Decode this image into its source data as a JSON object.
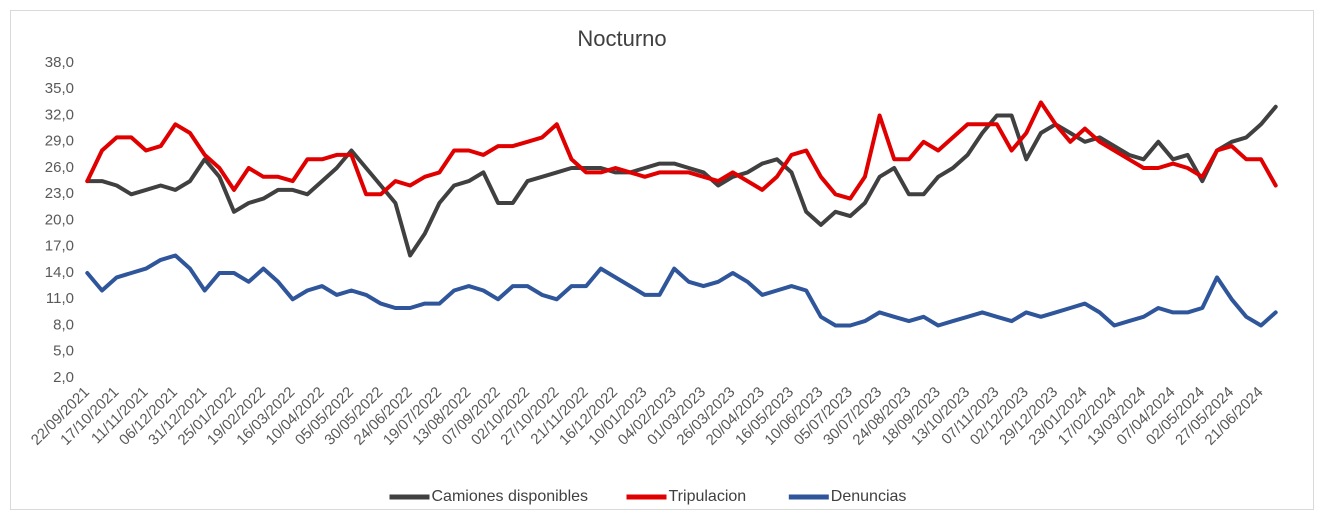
{
  "chart_data": {
    "type": "line",
    "title": "Nocturno",
    "categories": [
      "22/09/2021",
      null,
      "17/10/2021",
      null,
      "11/11/2021",
      null,
      "06/12/2021",
      null,
      "31/12/2021",
      null,
      "25/01/2022",
      null,
      "19/02/2022",
      null,
      "16/03/2022",
      null,
      "10/04/2022",
      null,
      "05/05/2022",
      null,
      "30/05/2022",
      null,
      "24/06/2022",
      null,
      "19/07/2022",
      null,
      "13/08/2022",
      null,
      "07/09/2022",
      null,
      "02/10/2022",
      null,
      "27/10/2022",
      null,
      "21/11/2022",
      null,
      "16/12/2022",
      null,
      "10/01/2023",
      null,
      "04/02/2023",
      null,
      "01/03/2023",
      null,
      "26/03/2023",
      null,
      "20/04/2023",
      null,
      "16/05/2023",
      null,
      "10/06/2023",
      null,
      "05/07/2023",
      null,
      "30/07/2023",
      null,
      "24/08/2023",
      null,
      "18/09/2023",
      null,
      "13/10/2023",
      null,
      "07/11/2023",
      null,
      "02/12/2023",
      null,
      "29/12/2023",
      null,
      "23/01/2024",
      null,
      "17/02/2024",
      null,
      "13/03/2024",
      null,
      "07/04/2024",
      null,
      "02/05/2024",
      null,
      "27/05/2024",
      null,
      "21/06/2024",
      null
    ],
    "series": [
      {
        "name": "Camiones disponibles",
        "color": "#404040",
        "values": [
          24.5,
          24.5,
          24,
          23,
          23.5,
          24,
          23.5,
          24.5,
          27,
          25,
          21,
          22,
          22.5,
          23.5,
          23.5,
          23,
          24.5,
          26,
          28,
          26,
          24,
          22,
          16,
          18.5,
          22,
          24,
          24.5,
          25.5,
          22,
          22,
          24.5,
          25,
          25.5,
          26,
          26,
          26,
          25.5,
          25.5,
          26,
          26.5,
          26.5,
          26,
          25.5,
          24,
          25,
          25.5,
          26.5,
          27,
          25.5,
          21,
          19.5,
          21,
          20.5,
          22,
          25,
          26,
          23,
          23,
          25,
          26,
          27.5,
          30,
          32,
          32,
          27,
          30,
          31,
          30,
          29,
          29.5,
          28.5,
          27.5,
          27,
          29,
          27,
          27.5,
          24.5,
          28,
          29,
          29.5,
          31,
          33
        ]
      },
      {
        "name": "Tripulacion",
        "color": "#e00000",
        "values": [
          24.5,
          28,
          29.5,
          29.5,
          28,
          28.5,
          31,
          30,
          27.5,
          26,
          23.5,
          26,
          25,
          25,
          24.5,
          27,
          27,
          27.5,
          27.5,
          23,
          23,
          24.5,
          24,
          25,
          25.5,
          28,
          28,
          27.5,
          28.5,
          28.5,
          29,
          29.5,
          31,
          27,
          25.5,
          25.5,
          26,
          25.5,
          25,
          25.5,
          25.5,
          25.5,
          25,
          24.5,
          25.5,
          24.5,
          23.5,
          25,
          27.5,
          28,
          25,
          23,
          22.5,
          25,
          32,
          27,
          27,
          29,
          28,
          29.5,
          31,
          31,
          31,
          28,
          30,
          33.5,
          31,
          29,
          30.5,
          29,
          28,
          27,
          26,
          26,
          26.5,
          26,
          25,
          28,
          28.5,
          27,
          27,
          24
        ]
      },
      {
        "name": "Denuncias",
        "color": "#2f559a",
        "values": [
          14,
          12,
          13.5,
          14,
          14.5,
          15.5,
          16,
          14.5,
          12,
          14,
          14,
          13,
          14.5,
          13,
          11,
          12,
          12.5,
          11.5,
          12,
          11.5,
          10.5,
          10,
          10,
          10.5,
          10.5,
          12,
          12.5,
          12,
          11,
          12.5,
          12.5,
          11.5,
          11,
          12.5,
          12.5,
          14.5,
          13.5,
          12.5,
          11.5,
          11.5,
          14.5,
          13,
          12.5,
          13,
          14,
          13,
          11.5,
          12,
          12.5,
          12,
          9,
          8,
          8,
          8.5,
          9.5,
          9,
          8.5,
          9,
          8,
          8.5,
          9,
          9.5,
          9,
          8.5,
          9.5,
          9,
          9.5,
          10,
          10.5,
          9.5,
          8,
          8.5,
          9,
          10,
          9.5,
          9.5,
          10,
          13.5,
          11,
          9,
          8,
          9.5
        ]
      }
    ],
    "ylim": [
      2,
      38
    ],
    "yticks": [
      {
        "value": 2,
        "label": "2,0"
      },
      {
        "value": 5,
        "label": "5,0"
      },
      {
        "value": 8,
        "label": "8,0"
      },
      {
        "value": 11,
        "label": "11,0"
      },
      {
        "value": 14,
        "label": "14,0"
      },
      {
        "value": 17,
        "label": "17,0"
      },
      {
        "value": 20,
        "label": "20,0"
      },
      {
        "value": 23,
        "label": "23,0"
      },
      {
        "value": 26,
        "label": "26,0"
      },
      {
        "value": 29,
        "label": "29,0"
      },
      {
        "value": 32,
        "label": "32,0"
      },
      {
        "value": 35,
        "label": "35,0"
      },
      {
        "value": 38,
        "label": "38,0"
      }
    ],
    "grid": false,
    "legend": "bottom"
  }
}
